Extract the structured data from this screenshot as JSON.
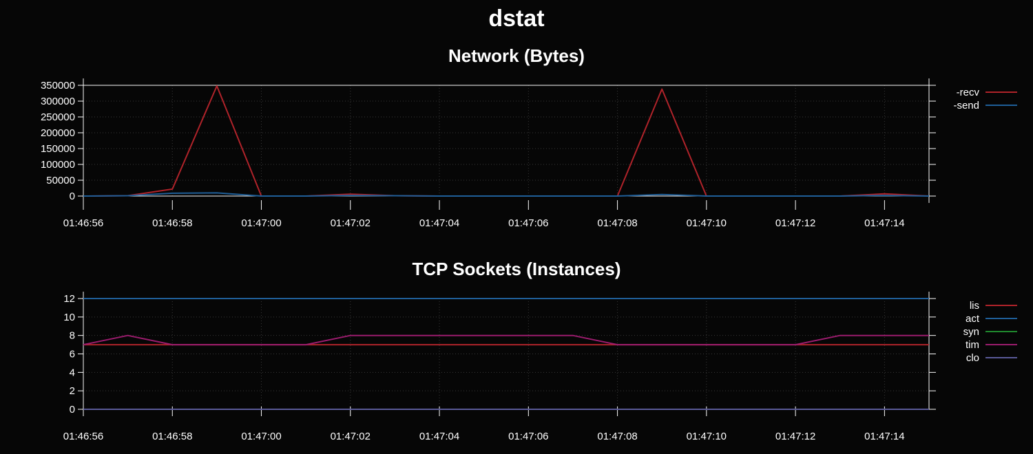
{
  "title": "dstat",
  "colors": {
    "background": "#060606",
    "foreground": "#ffffff",
    "grid": "#3a3a3a",
    "series": [
      "#b0232a",
      "#1f5f99",
      "#1f8a2e",
      "#9c1c6e",
      "#5a5a99"
    ]
  },
  "chart_data": [
    {
      "type": "line",
      "title": "Network (Bytes)",
      "xlabel": "",
      "ylabel": "",
      "ylim": [
        0,
        350000
      ],
      "yticks": [
        0,
        50000,
        100000,
        150000,
        200000,
        250000,
        300000,
        350000
      ],
      "ytick_labels": [
        "0",
        "50000",
        "100000",
        "150000",
        "200000",
        "250000",
        "300000",
        "350000"
      ],
      "xlim": [
        "01:46:56",
        "01:47:15"
      ],
      "xtick_labels": [
        "01:46:56",
        "01:46:58",
        "01:47:00",
        "01:47:02",
        "01:47:04",
        "01:47:06",
        "01:47:08",
        "01:47:10",
        "01:47:12",
        "01:47:14"
      ],
      "grid": true,
      "legend_position": "right",
      "x": [
        "01:46:56",
        "01:46:57",
        "01:46:58",
        "01:46:59",
        "01:47:00",
        "01:47:01",
        "01:47:02",
        "01:47:03",
        "01:47:04",
        "01:47:05",
        "01:47:06",
        "01:47:07",
        "01:47:08",
        "01:47:09",
        "01:47:10",
        "01:47:11",
        "01:47:12",
        "01:47:13",
        "01:47:14",
        "01:47:15"
      ],
      "series": [
        {
          "name": "-recv",
          "color": "#b0232a",
          "values": [
            0,
            1000,
            22000,
            348000,
            0,
            0,
            6000,
            1000,
            0,
            0,
            0,
            0,
            0,
            338000,
            0,
            0,
            0,
            0,
            7000,
            0
          ]
        },
        {
          "name": "-send",
          "color": "#1f5f99",
          "values": [
            0,
            1000,
            9000,
            10000,
            0,
            0,
            2000,
            1000,
            0,
            0,
            0,
            0,
            0,
            5000,
            0,
            0,
            0,
            0,
            2000,
            0
          ]
        }
      ]
    },
    {
      "type": "line",
      "title": "TCP Sockets (Instances)",
      "xlabel": "",
      "ylabel": "",
      "ylim": [
        0,
        12
      ],
      "yticks": [
        0,
        2,
        4,
        6,
        8,
        10,
        12
      ],
      "ytick_labels": [
        "0",
        "2",
        "4",
        "6",
        "8",
        "10",
        "12"
      ],
      "xlim": [
        "01:46:56",
        "01:47:15"
      ],
      "xtick_labels": [
        "01:46:56",
        "01:46:58",
        "01:47:00",
        "01:47:02",
        "01:47:04",
        "01:47:06",
        "01:47:08",
        "01:47:10",
        "01:47:12",
        "01:47:14"
      ],
      "grid": true,
      "legend_position": "right",
      "x": [
        "01:46:56",
        "01:46:57",
        "01:46:58",
        "01:46:59",
        "01:47:00",
        "01:47:01",
        "01:47:02",
        "01:47:03",
        "01:47:04",
        "01:47:05",
        "01:47:06",
        "01:47:07",
        "01:47:08",
        "01:47:09",
        "01:47:10",
        "01:47:11",
        "01:47:12",
        "01:47:13",
        "01:47:14",
        "01:47:15"
      ],
      "series": [
        {
          "name": "lis",
          "color": "#b0232a",
          "values": [
            7,
            7,
            7,
            7,
            7,
            7,
            7,
            7,
            7,
            7,
            7,
            7,
            7,
            7,
            7,
            7,
            7,
            7,
            7,
            7
          ]
        },
        {
          "name": "act",
          "color": "#1f5f99",
          "values": [
            12,
            12,
            12,
            12,
            12,
            12,
            12,
            12,
            12,
            12,
            12,
            12,
            12,
            12,
            12,
            12,
            12,
            12,
            12,
            12
          ]
        },
        {
          "name": "syn",
          "color": "#1f8a2e",
          "values": [
            0,
            0,
            0,
            0,
            0,
            0,
            0,
            0,
            0,
            0,
            0,
            0,
            0,
            0,
            0,
            0,
            0,
            0,
            0,
            0
          ]
        },
        {
          "name": "tim",
          "color": "#9c1c6e",
          "values": [
            7,
            8,
            7,
            7,
            7,
            7,
            8,
            8,
            8,
            8,
            8,
            8,
            7,
            7,
            7,
            7,
            7,
            8,
            8,
            8
          ]
        },
        {
          "name": "clo",
          "color": "#5a5a99",
          "values": [
            0,
            0,
            0,
            0,
            0,
            0,
            0,
            0,
            0,
            0,
            0,
            0,
            0,
            0,
            0,
            0,
            0,
            0,
            0,
            0
          ]
        }
      ]
    }
  ]
}
